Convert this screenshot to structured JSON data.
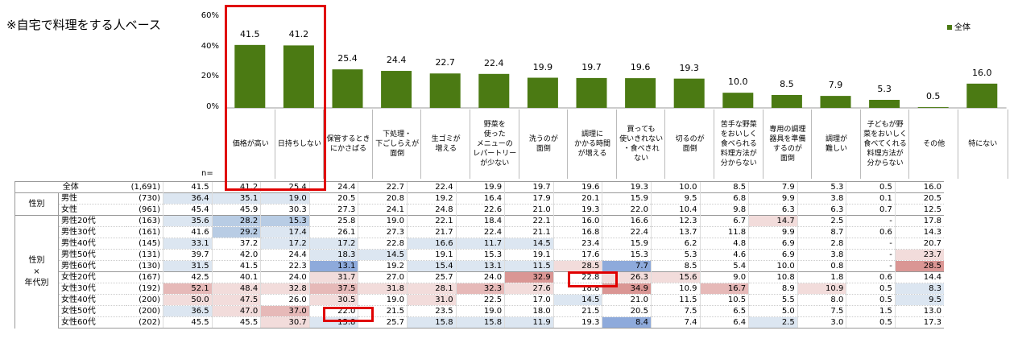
{
  "note": "※自宅で料理をする人ベース",
  "chart_data": {
    "type": "bar",
    "categories": [
      "価格が高い",
      "日持ちしない",
      "保管するときにかさばる",
      "下処理・下ごしらえが面倒",
      "生ゴミが増える",
      "野菜を使ったメニューのレパートリーが少ない",
      "洗うのが面倒",
      "調理にかかる時間が増える",
      "買っても使いきれない・食べきれない",
      "切るのが面倒",
      "苦手な野菜をおいしく食べられる料理方法が分からない",
      "専用の調理器具を準備するのが面倒",
      "調理が難しい",
      "子どもが野菜をおいしく食べてくれる料理方法が分からない",
      "その他",
      "特にない"
    ],
    "category_lines": [
      [
        "価格が高い"
      ],
      [
        "日持ちしない"
      ],
      [
        "保管するとき",
        "にかさばる"
      ],
      [
        "下処理・",
        "下ごしらえが",
        "面倒"
      ],
      [
        "生ゴミが",
        "増える"
      ],
      [
        "野菜を",
        "使った",
        "メニューの",
        "レパートリー",
        "が少ない"
      ],
      [
        "洗うのが",
        "面倒"
      ],
      [
        "調理に",
        "かかる時間",
        "が増える"
      ],
      [
        "買っても",
        "使いきれない",
        "・食べきれ",
        "ない"
      ],
      [
        "切るのが",
        "面倒"
      ],
      [
        "苦手な野菜",
        "をおいしく",
        "食べられる",
        "料理方法が",
        "分からない"
      ],
      [
        "専用の調理",
        "器具を準備",
        "するのが",
        "面倒"
      ],
      [
        "調理が",
        "難しい"
      ],
      [
        "子どもが野",
        "菜をおいしく",
        "食べてくれる",
        "料理方法が",
        "分からない"
      ],
      [
        "その他"
      ],
      [
        "特にない"
      ]
    ],
    "series": [
      {
        "name": "全体",
        "values": [
          41.5,
          41.2,
          25.4,
          24.4,
          22.7,
          22.4,
          19.9,
          19.7,
          19.6,
          19.3,
          10.0,
          8.5,
          7.9,
          5.3,
          0.5,
          16.0
        ]
      }
    ],
    "value_labels": [
      "41.5",
      "41.2",
      "25.4",
      "24.4",
      "22.7",
      "22.4",
      "19.9",
      "19.7",
      "19.6",
      "19.3",
      "10.0",
      "8.5",
      "7.9",
      "5.3",
      "0.5",
      "16.0"
    ],
    "y_ticks": [
      "60%",
      "40%",
      "20%",
      "0%"
    ],
    "ylim": [
      0,
      60
    ],
    "legend": "top-right",
    "colors": {
      "bar": "#4b7a13"
    }
  },
  "table": {
    "n_label": "n=",
    "rows": [
      {
        "group": "",
        "label": "全体",
        "n": "(1,691)",
        "values": [
          "41.5",
          "41.2",
          "25.4",
          "24.4",
          "22.7",
          "22.4",
          "19.9",
          "19.7",
          "19.6",
          "19.3",
          "10.0",
          "8.5",
          "7.9",
          "5.3",
          "0.5",
          "16.0"
        ],
        "shade": [
          "",
          "",
          "",
          "",
          "",
          "",
          "",
          "",
          "",
          "",
          "",
          "",
          "",
          "",
          "",
          ""
        ]
      },
      {
        "group": "性別",
        "label": "男性",
        "n": "(730)",
        "values": [
          "36.4",
          "35.1",
          "19.0",
          "20.5",
          "20.8",
          "19.2",
          "16.4",
          "17.9",
          "20.1",
          "15.9",
          "9.5",
          "6.8",
          "9.9",
          "3.8",
          "0.1",
          "20.5"
        ],
        "shade": [
          "b1",
          "b1",
          "b1",
          "",
          "",
          "",
          "",
          "",
          "",
          "",
          "",
          "",
          "",
          "",
          "",
          ""
        ]
      },
      {
        "group": "",
        "label": "女性",
        "n": "(961)",
        "values": [
          "45.4",
          "45.9",
          "30.3",
          "27.3",
          "24.1",
          "24.8",
          "22.6",
          "21.0",
          "19.3",
          "22.0",
          "10.4",
          "9.8",
          "6.3",
          "6.3",
          "0.7",
          "12.5"
        ],
        "shade": [
          "",
          "",
          "",
          "",
          "",
          "",
          "",
          "",
          "",
          "",
          "",
          "",
          "",
          "",
          "",
          ""
        ]
      },
      {
        "group": "性別\n×\n年代別",
        "label": "男性20代",
        "n": "(163)",
        "values": [
          "35.6",
          "28.2",
          "15.3",
          "25.8",
          "19.0",
          "22.1",
          "18.4",
          "22.1",
          "16.0",
          "16.6",
          "12.3",
          "6.7",
          "14.7",
          "2.5",
          "-",
          "17.8"
        ],
        "shade": [
          "b1",
          "b2",
          "b2",
          "",
          "",
          "",
          "",
          "",
          "",
          "",
          "",
          "",
          "r1",
          "",
          "",
          ""
        ]
      },
      {
        "group": "",
        "label": "男性30代",
        "n": "(161)",
        "values": [
          "41.6",
          "29.2",
          "17.4",
          "26.1",
          "27.3",
          "21.7",
          "22.4",
          "21.1",
          "16.8",
          "22.4",
          "13.7",
          "11.8",
          "9.9",
          "8.7",
          "0.6",
          "14.3"
        ],
        "shade": [
          "",
          "b2",
          "b1",
          "",
          "",
          "",
          "",
          "",
          "",
          "",
          "",
          "",
          "",
          "",
          "",
          ""
        ]
      },
      {
        "group": "",
        "label": "男性40代",
        "n": "(145)",
        "values": [
          "33.1",
          "37.2",
          "17.2",
          "17.2",
          "22.8",
          "16.6",
          "11.7",
          "14.5",
          "23.4",
          "15.9",
          "6.2",
          "4.8",
          "6.9",
          "2.8",
          "-",
          "20.7"
        ],
        "shade": [
          "b1",
          "",
          "b1",
          "b1",
          "",
          "b1",
          "b1",
          "b1",
          "",
          "",
          "",
          "",
          "",
          "",
          "",
          ""
        ]
      },
      {
        "group": "",
        "label": "男性50代",
        "n": "(131)",
        "values": [
          "39.7",
          "42.0",
          "24.4",
          "18.3",
          "14.5",
          "19.1",
          "15.3",
          "19.1",
          "17.6",
          "15.3",
          "5.3",
          "4.6",
          "6.9",
          "3.8",
          "-",
          "23.7"
        ],
        "shade": [
          "",
          "",
          "",
          "b1",
          "b1",
          "",
          "",
          "",
          "",
          "",
          "",
          "",
          "",
          "",
          "",
          "r1"
        ]
      },
      {
        "group": "",
        "label": "男性60代",
        "n": "(130)",
        "values": [
          "31.5",
          "41.5",
          "22.3",
          "13.1",
          "19.2",
          "15.4",
          "13.1",
          "11.5",
          "28.5",
          "7.7",
          "8.5",
          "5.4",
          "10.0",
          "0.8",
          "-",
          "28.5"
        ],
        "shade": [
          "b1",
          "",
          "",
          "b3",
          "",
          "b1",
          "b1",
          "b1",
          "r1",
          "b3",
          "",
          "",
          "",
          "",
          "",
          "r3"
        ]
      },
      {
        "group": "",
        "label": "女性20代",
        "n": "(167)",
        "values": [
          "42.5",
          "40.1",
          "24.0",
          "31.7",
          "27.0",
          "25.7",
          "24.0",
          "32.9",
          "22.8",
          "26.3",
          "15.6",
          "9.0",
          "10.8",
          "1.8",
          "0.6",
          "14.4"
        ],
        "shade": [
          "",
          "",
          "",
          "r1",
          "",
          "",
          "",
          "r3",
          "",
          "r1",
          "r1",
          "",
          "",
          "",
          "",
          ""
        ]
      },
      {
        "group": "",
        "label": "女性30代",
        "n": "(192)",
        "values": [
          "52.1",
          "48.4",
          "32.8",
          "37.5",
          "31.8",
          "28.1",
          "32.3",
          "27.6",
          "18.8",
          "34.9",
          "10.9",
          "16.7",
          "8.9",
          "10.9",
          "0.5",
          "8.3"
        ],
        "shade": [
          "r2",
          "r1",
          "r1",
          "r2",
          "r1",
          "r1",
          "r2",
          "r1",
          "",
          "r3",
          "",
          "r2",
          "",
          "r1",
          "",
          "b1"
        ]
      },
      {
        "group": "",
        "label": "女性40代",
        "n": "(200)",
        "values": [
          "50.0",
          "47.5",
          "26.0",
          "30.5",
          "19.0",
          "31.0",
          "22.5",
          "17.0",
          "14.5",
          "21.0",
          "11.5",
          "10.5",
          "5.5",
          "8.0",
          "0.5",
          "9.5"
        ],
        "shade": [
          "r1",
          "r1",
          "",
          "r1",
          "",
          "r1",
          "",
          "",
          "b1",
          "",
          "",
          "",
          "",
          "",
          "",
          "b1"
        ]
      },
      {
        "group": "",
        "label": "女性50代",
        "n": "(200)",
        "values": [
          "36.5",
          "47.0",
          "37.0",
          "22.0",
          "21.5",
          "23.5",
          "19.0",
          "18.0",
          "21.5",
          "20.5",
          "7.5",
          "6.5",
          "5.0",
          "7.5",
          "1.5",
          "13.0"
        ],
        "shade": [
          "b1",
          "r1",
          "r2",
          "",
          "",
          "",
          "",
          "",
          "",
          "",
          "",
          "",
          "",
          "",
          "",
          ""
        ]
      },
      {
        "group": "",
        "label": "女性60代",
        "n": "(202)",
        "values": [
          "45.5",
          "45.5",
          "30.7",
          "15.8",
          "25.7",
          "15.8",
          "15.8",
          "11.9",
          "19.3",
          "8.4",
          "7.4",
          "6.4",
          "2.5",
          "3.0",
          "0.5",
          "17.3"
        ],
        "shade": [
          "",
          "",
          "r1",
          "b1",
          "",
          "b1",
          "b1",
          "b1",
          "",
          "b3",
          "",
          "",
          "b1",
          "",
          "",
          ""
        ]
      }
    ],
    "shade_colors": {
      "b1": "#dce6f1",
      "b2": "#b8cce4",
      "b3": "#8eaadb",
      "r1": "#f2dcdb",
      "r2": "#e6b9b8",
      "r3": "#da9694"
    }
  }
}
